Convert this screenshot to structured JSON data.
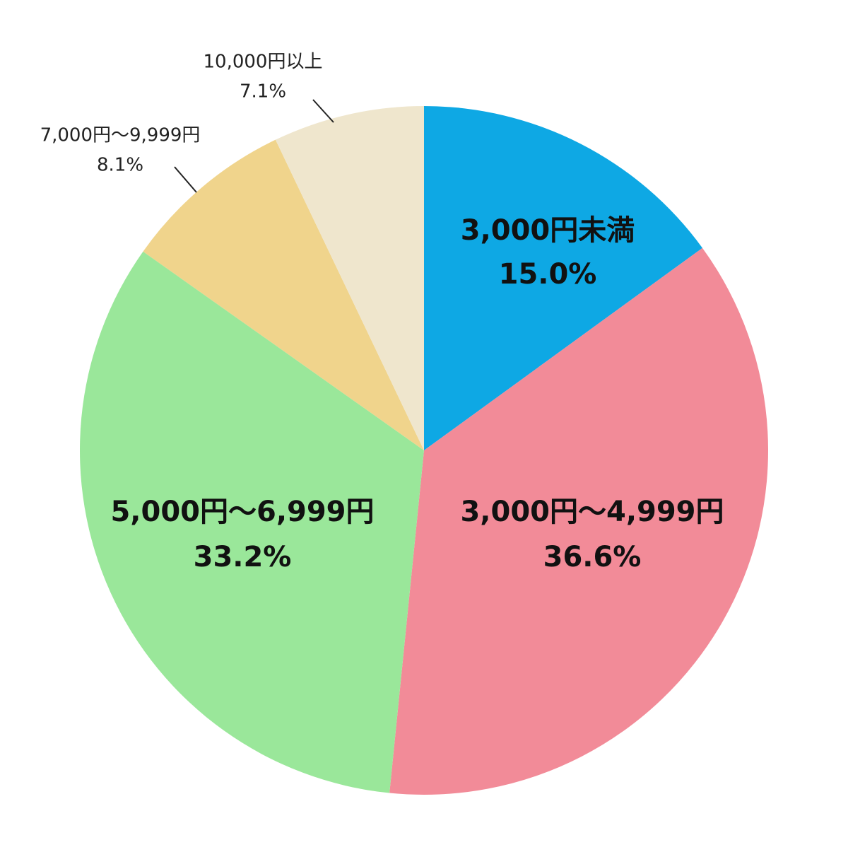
{
  "chart_data": {
    "type": "pie",
    "start": "12 o'clock",
    "direction": "clockwise",
    "legend": "none",
    "slices": [
      {
        "label": "3,000円未満",
        "value": 15.0,
        "value_label": "15.0%",
        "color": "#0EA8E4",
        "label_placement": "inside"
      },
      {
        "label": "3,000円〜4,999円",
        "value": 36.6,
        "value_label": "36.6%",
        "color": "#F28B98",
        "label_placement": "inside"
      },
      {
        "label": "5,000円〜6,999円",
        "value": 33.2,
        "value_label": "33.2%",
        "color": "#9AE79A",
        "label_placement": "inside"
      },
      {
        "label": "7,000円〜9,999円",
        "value": 8.1,
        "value_label": "8.1%",
        "color": "#F0D48C",
        "label_placement": "outside"
      },
      {
        "label": "10,000円以上",
        "value": 7.1,
        "value_label": "7.1%",
        "color": "#EFE6CD",
        "label_placement": "outside"
      }
    ]
  }
}
